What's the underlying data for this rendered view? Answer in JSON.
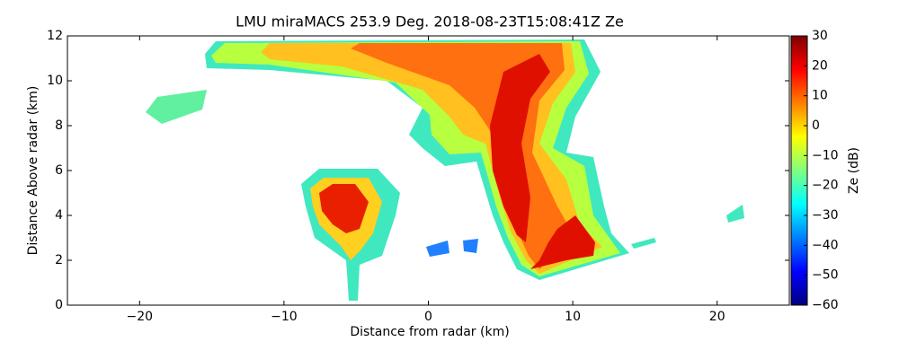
{
  "chart_data": {
    "type": "heatmap",
    "title": "LMU miraMACS 253.9 Deg. 2018-08-23T15:08:41Z  Ze",
    "xlabel": "Distance from radar (km)",
    "ylabel": "Distance Above radar  (km)",
    "xlim": [
      -25,
      25
    ],
    "xticks": [
      {
        "value": -20,
        "label": "−20"
      },
      {
        "value": -10,
        "label": "−10"
      },
      0,
      10,
      20
    ],
    "ylim": [
      0,
      12
    ],
    "yticks": [
      0,
      2,
      4,
      6,
      8,
      10,
      12
    ],
    "colorbar": {
      "label": "Ze (dB)",
      "colormap": "jet",
      "lim": [
        -60,
        30
      ],
      "ticks": [
        {
          "value": -60,
          "label": "−60"
        },
        {
          "value": -50,
          "label": "−50"
        },
        {
          "value": -40,
          "label": "−40"
        },
        {
          "value": -30,
          "label": "−30"
        },
        {
          "value": -20,
          "label": "−20"
        },
        {
          "value": -10,
          "label": "−10"
        },
        0,
        10,
        20,
        30
      ]
    }
  }
}
